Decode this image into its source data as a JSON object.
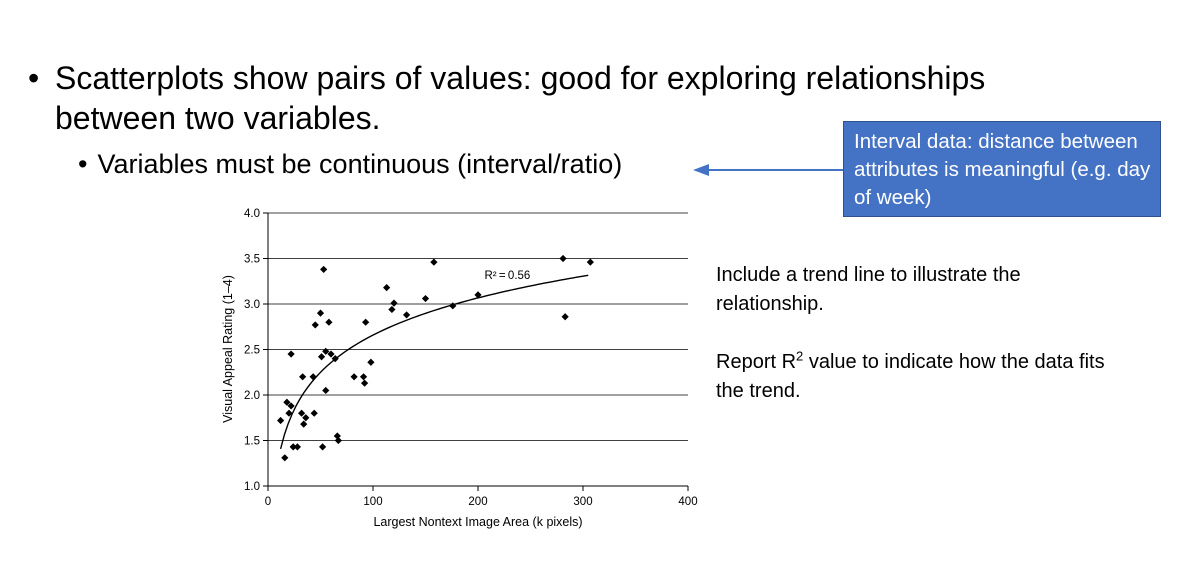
{
  "slide": {
    "bullet1": "Scatterplots show pairs of values: good for exploring relationships between two variables.",
    "bullet2": "Variables must be continuous (interval/ratio)",
    "bullet_glyph": "•",
    "callout": "Interval data: distance between attributes is meaningful (e.g. day of week)",
    "note1": "Include a trend line to illustrate the relationship.",
    "note2_before": "Report R",
    "note2_sup": "2",
    "note2_after": " value to indicate how the data fits the trend.",
    "colors": {
      "callout_fill": "#4472c4",
      "arrow": "#4472c4"
    }
  },
  "chart_data": {
    "type": "scatter",
    "xlabel": "Largest Nontext Image Area (k pixels)",
    "ylabel": "Visual Appeal Rating (1–4)",
    "xlim": [
      0,
      400
    ],
    "ylim": [
      1.0,
      4.0
    ],
    "x_ticks": [
      "0",
      "100",
      "200",
      "300",
      "400"
    ],
    "y_ticks": [
      "1.0",
      "1.5",
      "2.0",
      "2.5",
      "3.0",
      "3.5",
      "4.0"
    ],
    "grid": "horizontal",
    "marker": "diamond",
    "points": [
      {
        "x": 12,
        "y": 1.72
      },
      {
        "x": 16,
        "y": 1.31
      },
      {
        "x": 18,
        "y": 1.92
      },
      {
        "x": 20,
        "y": 1.8
      },
      {
        "x": 22,
        "y": 1.88
      },
      {
        "x": 22,
        "y": 2.45
      },
      {
        "x": 24,
        "y": 1.43
      },
      {
        "x": 28,
        "y": 1.43
      },
      {
        "x": 32,
        "y": 1.8
      },
      {
        "x": 33,
        "y": 2.2
      },
      {
        "x": 34,
        "y": 1.68
      },
      {
        "x": 36,
        "y": 1.75
      },
      {
        "x": 43,
        "y": 2.2
      },
      {
        "x": 44,
        "y": 1.8
      },
      {
        "x": 45,
        "y": 2.77
      },
      {
        "x": 50,
        "y": 2.9
      },
      {
        "x": 51,
        "y": 2.42
      },
      {
        "x": 52,
        "y": 1.43
      },
      {
        "x": 53,
        "y": 3.38
      },
      {
        "x": 55,
        "y": 2.48
      },
      {
        "x": 55,
        "y": 2.05
      },
      {
        "x": 58,
        "y": 2.8
      },
      {
        "x": 60,
        "y": 2.45
      },
      {
        "x": 64,
        "y": 2.4
      },
      {
        "x": 66,
        "y": 1.55
      },
      {
        "x": 67,
        "y": 1.5
      },
      {
        "x": 82,
        "y": 2.2
      },
      {
        "x": 91,
        "y": 2.2
      },
      {
        "x": 92,
        "y": 2.13
      },
      {
        "x": 93,
        "y": 2.8
      },
      {
        "x": 98,
        "y": 2.36
      },
      {
        "x": 113,
        "y": 3.18
      },
      {
        "x": 118,
        "y": 2.94
      },
      {
        "x": 120,
        "y": 3.01
      },
      {
        "x": 132,
        "y": 2.88
      },
      {
        "x": 150,
        "y": 3.06
      },
      {
        "x": 158,
        "y": 3.46
      },
      {
        "x": 176,
        "y": 2.98
      },
      {
        "x": 200,
        "y": 3.1
      },
      {
        "x": 281,
        "y": 3.5
      },
      {
        "x": 283,
        "y": 2.86
      },
      {
        "x": 307,
        "y": 3.46
      }
    ],
    "trendline": {
      "type": "logarithmic",
      "label": "R² = 0.56",
      "r_squared": 0.56,
      "from_x": 12,
      "to_x": 305
    }
  }
}
